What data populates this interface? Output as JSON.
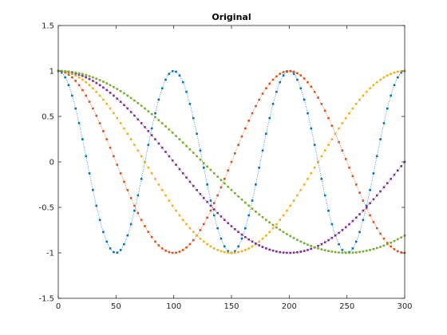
{
  "chart_data": {
    "type": "line",
    "title": "Original",
    "xlabel": "",
    "ylabel": "",
    "xlim": [
      0,
      300
    ],
    "ylim": [
      -1.5,
      1.5
    ],
    "xticks": [
      0,
      50,
      100,
      150,
      200,
      250,
      300
    ],
    "yticks": [
      -1.5,
      -1,
      -0.5,
      0,
      0.5,
      1,
      1.5
    ],
    "grid": false,
    "box": true,
    "markers": "dots",
    "x": {
      "start": 0,
      "end": 300,
      "step": 3
    },
    "series": [
      {
        "formula": "cos(2*pi*x/100)",
        "color": "#0072BD",
        "line_style": "dotted"
      },
      {
        "formula": "cos(2*pi*x/200)",
        "color": "#D95319",
        "line_style": "dotted"
      },
      {
        "formula": "cos(2*pi*x/300)",
        "color": "#EDB120",
        "line_style": "dotted"
      },
      {
        "formula": "cos(2*pi*x/400)",
        "color": "#7E2F8E",
        "line_style": "dotted"
      },
      {
        "formula": "cos(2*pi*x/500)",
        "color": "#77AC30",
        "line_style": "dotted"
      }
    ]
  }
}
